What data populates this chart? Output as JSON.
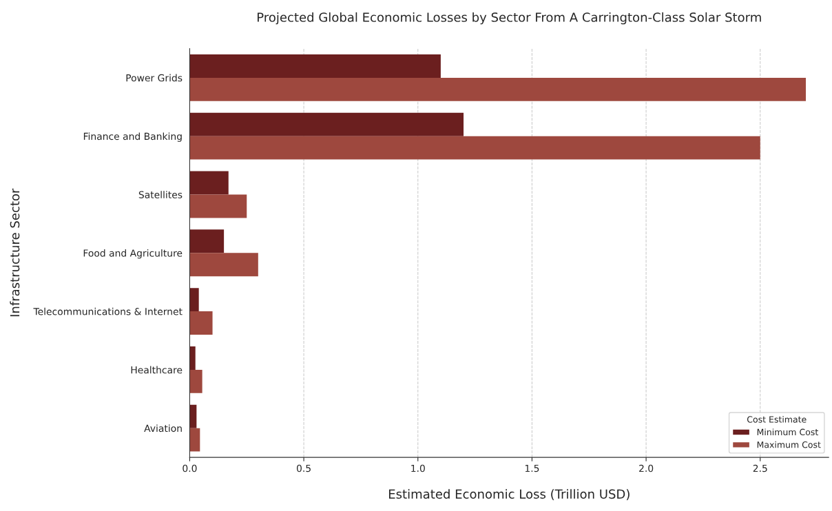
{
  "chart_data": {
    "type": "bar",
    "orientation": "horizontal",
    "title": "Projected Global Economic Losses by Sector From A Carrington-Class Solar Storm",
    "xlabel": "Estimated Economic Loss (Trillion USD)",
    "ylabel": "Infrastructure Sector",
    "legend_title": "Cost Estimate",
    "categories": [
      "Power Grids",
      "Finance and Banking",
      "Satellites",
      "Food and Agriculture",
      "Telecommunications & Internet",
      "Healthcare",
      "Aviation"
    ],
    "series": [
      {
        "name": "Minimum Cost",
        "color": "#6b1f1f",
        "values": [
          1.1,
          1.2,
          0.17,
          0.15,
          0.04,
          0.025,
          0.03
        ]
      },
      {
        "name": "Maximum Cost",
        "color": "#9e483e",
        "values": [
          2.7,
          2.5,
          0.25,
          0.3,
          0.1,
          0.055,
          0.045
        ]
      }
    ],
    "xlim": [
      0,
      2.8
    ],
    "xticks": [
      {
        "value": 0,
        "label": "0.0"
      },
      0.5,
      {
        "value": 1,
        "label": "1.0"
      },
      1.5,
      {
        "value": 2,
        "label": "2.0"
      },
      2.5
    ],
    "grid": "x",
    "legend": "bottom right"
  }
}
